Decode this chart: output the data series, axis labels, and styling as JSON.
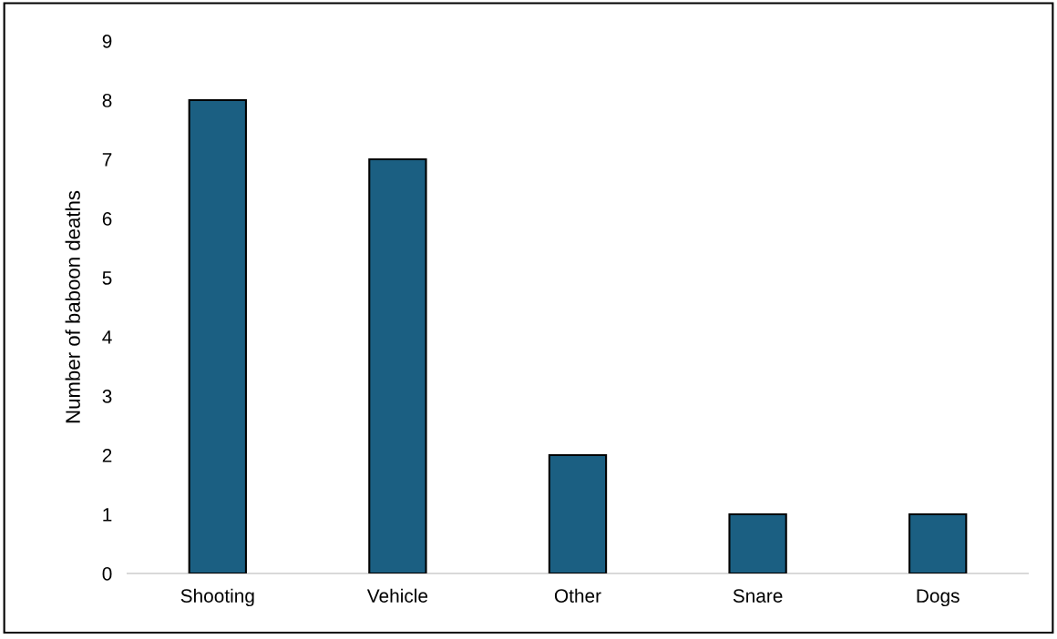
{
  "chart_data": {
    "type": "bar",
    "ylabel": "Number of baboon deaths",
    "categories": [
      "Shooting",
      "Vehicle",
      "Other",
      "Snare",
      "Dogs"
    ],
    "values": [
      8,
      7,
      2,
      1,
      1
    ],
    "color": "#1b5f82",
    "ylim": [
      0,
      9
    ],
    "yticks": [
      0,
      1,
      2,
      3,
      4,
      5,
      6,
      7,
      8,
      9
    ],
    "grid": false,
    "legend": false
  }
}
